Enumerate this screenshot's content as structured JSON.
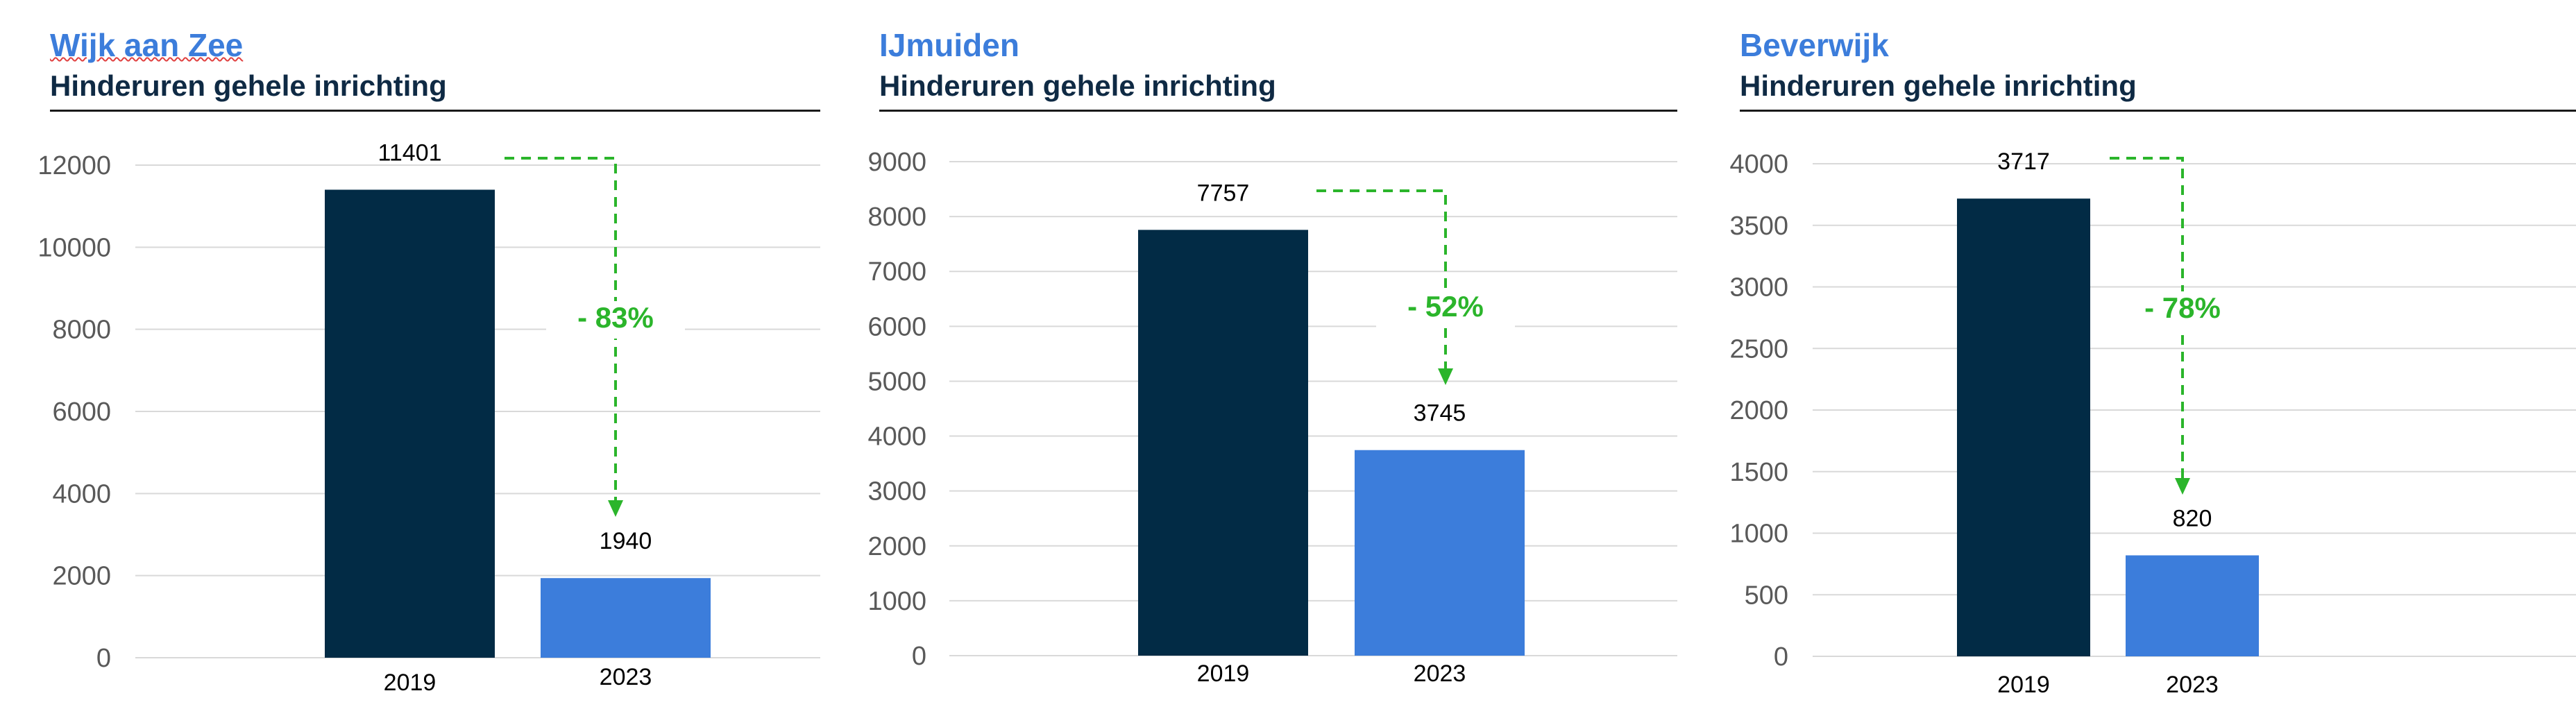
{
  "colors": {
    "title": "#3c7ddb",
    "subtitle": "#0f2a44",
    "bar_2019": "#022b45",
    "bar_2023": "#3c7ddb",
    "arrow": "#2bb52b",
    "grid": "#d9d9d9",
    "axis_text": "#595959"
  },
  "chart_data": [
    {
      "type": "bar",
      "title": "Wijk aan Zee",
      "subtitle": "Hinderuren gehele inrichting",
      "categories": [
        "2019",
        "2023"
      ],
      "values": [
        11401,
        1940
      ],
      "value_labels": [
        "11401",
        "1940"
      ],
      "ylim": [
        0,
        12000
      ],
      "yticks": [
        0,
        2000,
        4000,
        6000,
        8000,
        10000,
        12000
      ],
      "grid": true,
      "change_label": "- 83%"
    },
    {
      "type": "bar",
      "title": "IJmuiden",
      "subtitle": "Hinderuren gehele inrichting",
      "categories": [
        "2019",
        "2023"
      ],
      "values": [
        7757,
        3745
      ],
      "value_labels": [
        "7757",
        "3745"
      ],
      "ylim": [
        0,
        9000
      ],
      "yticks": [
        0,
        1000,
        2000,
        3000,
        4000,
        5000,
        6000,
        7000,
        8000,
        9000
      ],
      "grid": true,
      "change_label": "- 52%"
    },
    {
      "type": "bar",
      "title": "Beverwijk",
      "subtitle": "Hinderuren gehele inrichting",
      "categories": [
        "2019",
        "2023"
      ],
      "values": [
        3717,
        820
      ],
      "value_labels": [
        "3717",
        "820"
      ],
      "ylim": [
        0,
        4000
      ],
      "yticks": [
        0,
        500,
        1000,
        1500,
        2000,
        2500,
        3000,
        3500,
        4000
      ],
      "grid": true,
      "change_label": "- 78%"
    }
  ]
}
